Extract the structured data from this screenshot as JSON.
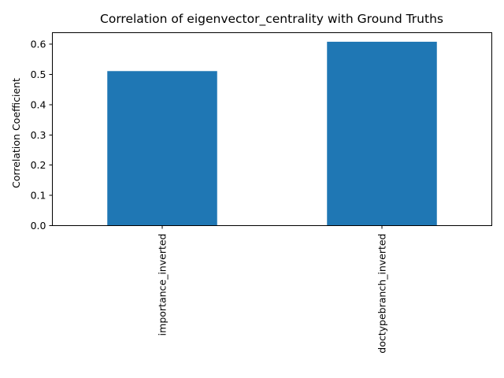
{
  "chart_data": {
    "type": "bar",
    "title": "Correlation of eigenvector_centrality with Ground Truths",
    "xlabel": "",
    "ylabel": "Correlation Coefficient",
    "categories": [
      "importance_inverted",
      "doctypebranch_inverted"
    ],
    "values": [
      0.511,
      0.608
    ],
    "ylim": [
      0,
      0.638
    ],
    "yticks": [
      0.0,
      0.1,
      0.2,
      0.3,
      0.4,
      0.5,
      0.6
    ],
    "ytick_labels": [
      "0.0",
      "0.1",
      "0.2",
      "0.3",
      "0.4",
      "0.5",
      "0.6"
    ],
    "grid": false,
    "legend": "none",
    "bar_color": "#1f77b4"
  }
}
